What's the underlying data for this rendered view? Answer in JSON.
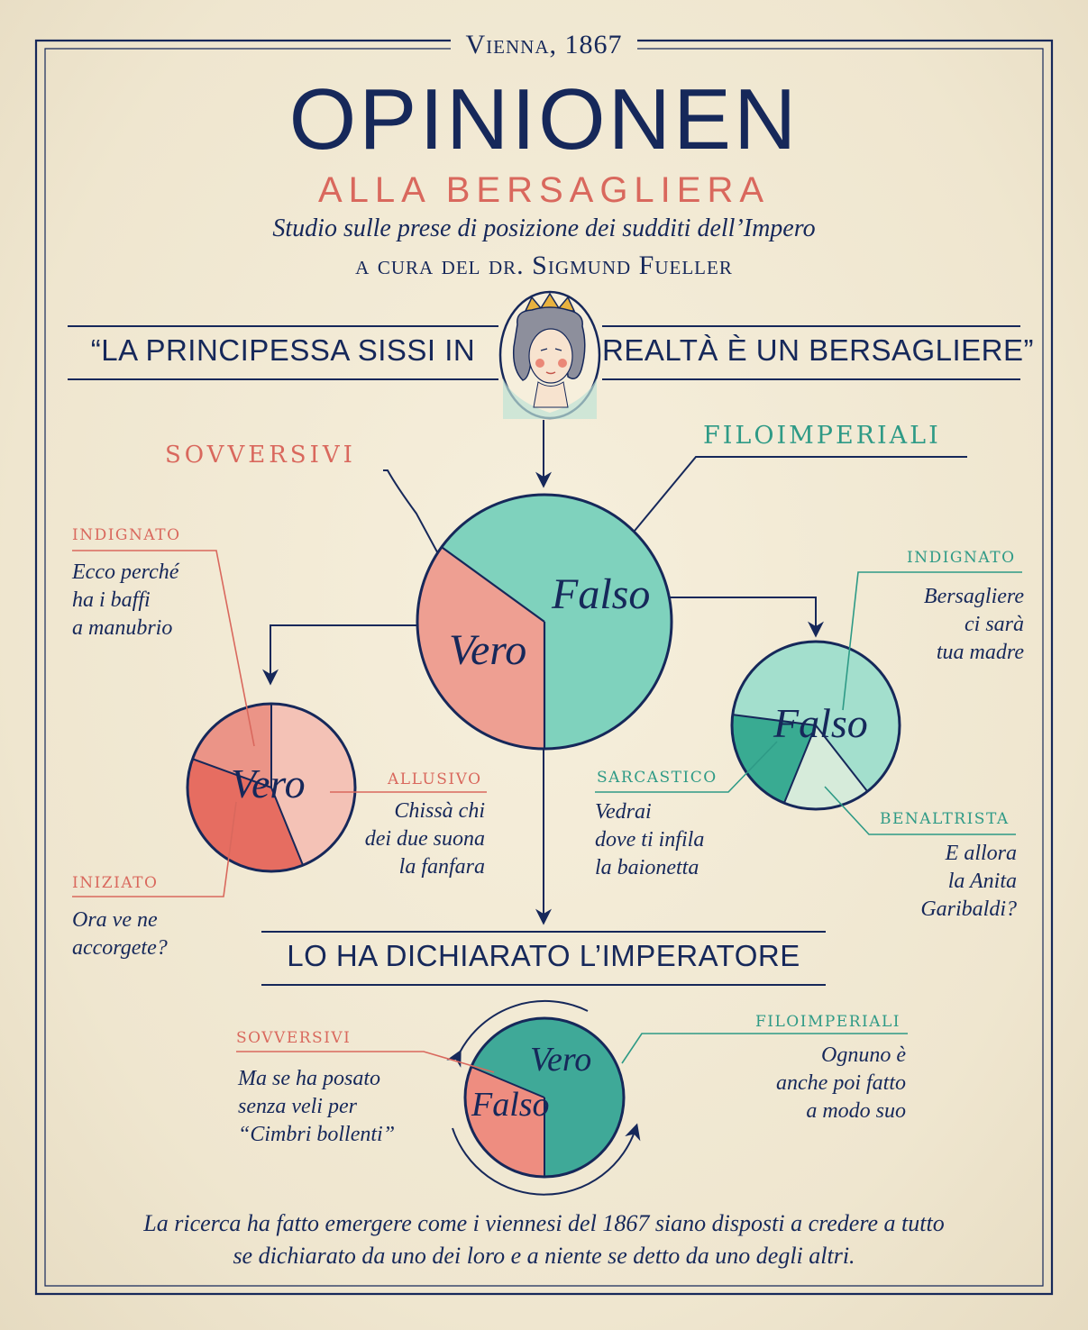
{
  "header": {
    "place_date": "Vienna, 1867",
    "title": "OPINIONEN",
    "subtitle": "ALLA BERSAGLIERA",
    "description": "Studio sulle prese di posizione dei sudditi dell’Impero",
    "author": "a cura del dr. Sigmund Fueller"
  },
  "quote": {
    "left": "“LA PRINCIPESSA SISSI IN",
    "right": "REALTÀ È UN BERSAGLIERE”"
  },
  "main_pie": {
    "groups": {
      "sovversivi": "SOVVERSIVI",
      "filoimperiali": "FILOIMPERIALI"
    },
    "vero_label": "Vero",
    "falso_label": "Falso",
    "vero_share": 0.35,
    "falso_share": 0.65
  },
  "vero_pie": {
    "label": "Vero",
    "segments": [
      {
        "tag": "INDIGNATO",
        "note": [
          "Ecco perché",
          "ha i baffi",
          "a manubrio"
        ]
      },
      {
        "tag": "ALLUSIVO",
        "note": [
          "Chissà chi",
          "dei due suona",
          "la fanfara"
        ]
      },
      {
        "tag": "INIZIATO",
        "note": [
          "Ora ve ne",
          "accorgete?"
        ]
      }
    ]
  },
  "falso_pie": {
    "label": "Falso",
    "segments": [
      {
        "tag": "INDIGNATO",
        "note": [
          "Bersagliere",
          "ci sarà",
          "tua madre"
        ]
      },
      {
        "tag": "SARCASTICO",
        "note": [
          "Vedrai",
          "dove ti infila",
          "la baionetta"
        ]
      },
      {
        "tag": "BENALTRISTA",
        "note": [
          "E allora",
          "la Anita",
          "Garibaldi?"
        ]
      }
    ]
  },
  "emperor": {
    "heading": "LO HA DICHIARATO L’IMPERATORE",
    "vero_label": "Vero",
    "falso_label": "Falso",
    "sovversivi": {
      "tag": "SOVVERSIVI",
      "note": [
        "Ma se ha posato",
        "senza veli per",
        "“Cimbri bollenti”"
      ]
    },
    "filoimperiali": {
      "tag": "FILOIMPERIALI",
      "note": [
        "Ognuno è",
        "anche poi fatto",
        "a modo suo"
      ]
    }
  },
  "conclusion": [
    "La ricerca ha fatto emergere come i viennesi del 1867 siano disposti a credere a tutto",
    "se dichiarato da uno dei loro e a niente se detto da uno degli altri."
  ],
  "colors": {
    "navy": "#16285a",
    "red": "#d9685d",
    "teal": "#2e9a86",
    "light_teal": "#7fd2bd",
    "salmon": "#ee9f92",
    "paper": "#f1e9d4"
  }
}
